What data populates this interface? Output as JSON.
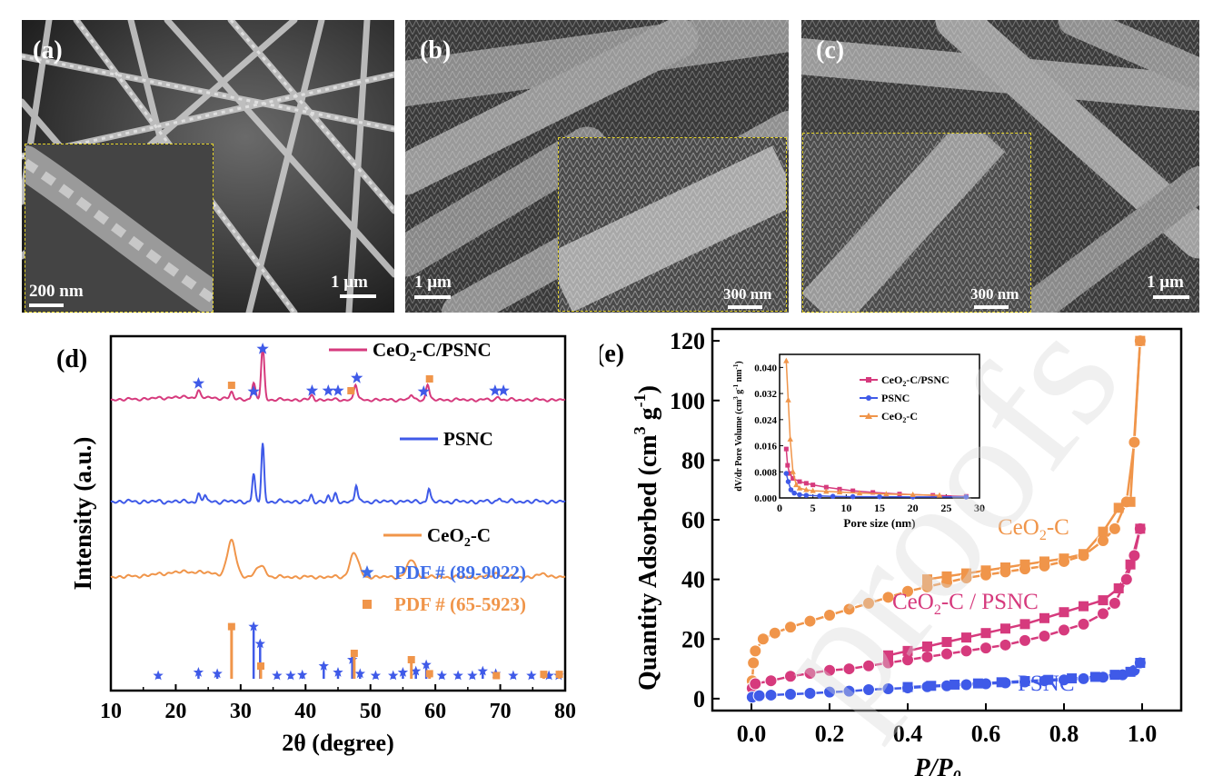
{
  "panels": {
    "a": {
      "label": "(a)",
      "scale_main": "1 μm",
      "scale_inset": "200 nm"
    },
    "b": {
      "label": "(b)",
      "scale_main": "1 μm",
      "scale_inset": "300 nm"
    },
    "c": {
      "label": "(c)",
      "scale_main": "1 μm",
      "scale_inset": "300 nm"
    }
  },
  "watermark": "proofs",
  "chart_data": [
    {
      "panel": "(d)",
      "type": "line",
      "xlabel": "2θ (degree)",
      "ylabel": "Intensity (a.u.)",
      "xlim": [
        10,
        80
      ],
      "xticks": [
        10,
        20,
        30,
        40,
        50,
        60,
        70,
        80
      ],
      "colors": {
        "ceo2_c_psnc": "#d63a7d",
        "psnc": "#3f5ae8",
        "ceo2_c": "#f0954a"
      },
      "series": [
        {
          "name": "CeO2-C/PSNC",
          "label_main": "CeO",
          "label_sub": "2",
          "label_rest": "-C/PSNC",
          "peaks": [
            {
              "x": 23.5,
              "h": 0.12
            },
            {
              "x": 32.0,
              "h": 0.3
            },
            {
              "x": 33.4,
              "h": 1.0
            },
            {
              "x": 41.0,
              "h": 0.08
            },
            {
              "x": 47.7,
              "h": 0.3
            },
            {
              "x": 58.8,
              "h": 0.3
            },
            {
              "x": 28.6,
              "h": 0.12
            },
            {
              "x": 56.3,
              "h": 0.1
            },
            {
              "x": 69.7,
              "h": 0.06
            }
          ]
        },
        {
          "name": "PSNC",
          "label_main": "PSNC",
          "label_sub": "",
          "label_rest": "",
          "peaks": [
            {
              "x": 23.5,
              "h": 0.1
            },
            {
              "x": 24.5,
              "h": 0.1
            },
            {
              "x": 32.0,
              "h": 0.38
            },
            {
              "x": 33.4,
              "h": 0.82
            },
            {
              "x": 40.9,
              "h": 0.08
            },
            {
              "x": 43.5,
              "h": 0.08
            },
            {
              "x": 44.6,
              "h": 0.09
            },
            {
              "x": 47.8,
              "h": 0.24
            },
            {
              "x": 59.0,
              "h": 0.18
            },
            {
              "x": 69.9,
              "h": 0.06
            }
          ]
        },
        {
          "name": "CeO2-C",
          "label_main": "CeO",
          "label_sub": "2",
          "label_rest": "-C",
          "peaks": [
            {
              "x": 28.6,
              "h": 0.6
            },
            {
              "x": 33.1,
              "h": 0.2
            },
            {
              "x": 47.5,
              "h": 0.42
            },
            {
              "x": 56.3,
              "h": 0.3
            },
            {
              "x": 69.4,
              "h": 0.06
            },
            {
              "x": 76.7,
              "h": 0.06
            }
          ]
        }
      ],
      "reference_legend": [
        {
          "marker": "star",
          "text": "PDF # (89-9022)",
          "color": "#3f6ee8"
        },
        {
          "marker": "square",
          "text": "PDF # (65-5923)",
          "color": "#f0954a"
        }
      ],
      "pdf_89_9022": [
        {
          "x": 17.3,
          "h": 0.05
        },
        {
          "x": 23.5,
          "h": 0.1
        },
        {
          "x": 26.4,
          "h": 0.08
        },
        {
          "x": 32.0,
          "h": 0.82
        },
        {
          "x": 33.0,
          "h": 0.55
        },
        {
          "x": 35.6,
          "h": 0.05
        },
        {
          "x": 37.7,
          "h": 0.05
        },
        {
          "x": 39.5,
          "h": 0.06
        },
        {
          "x": 42.8,
          "h": 0.2
        },
        {
          "x": 45.0,
          "h": 0.1
        },
        {
          "x": 47.2,
          "h": 0.3
        },
        {
          "x": 48.4,
          "h": 0.08
        },
        {
          "x": 50.8,
          "h": 0.05
        },
        {
          "x": 53.5,
          "h": 0.05
        },
        {
          "x": 55.0,
          "h": 0.1
        },
        {
          "x": 57.0,
          "h": 0.12
        },
        {
          "x": 58.6,
          "h": 0.22
        },
        {
          "x": 61.0,
          "h": 0.05
        },
        {
          "x": 63.5,
          "h": 0.05
        },
        {
          "x": 65.7,
          "h": 0.05
        },
        {
          "x": 67.3,
          "h": 0.12
        },
        {
          "x": 69.3,
          "h": 0.08
        },
        {
          "x": 72.0,
          "h": 0.05
        },
        {
          "x": 74.8,
          "h": 0.05
        },
        {
          "x": 77.5,
          "h": 0.05
        },
        {
          "x": 79.0,
          "h": 0.05
        }
      ],
      "pdf_65_5923": [
        {
          "x": 28.6,
          "h": 0.82
        },
        {
          "x": 33.1,
          "h": 0.2
        },
        {
          "x": 47.5,
          "h": 0.4
        },
        {
          "x": 56.3,
          "h": 0.3
        },
        {
          "x": 59.1,
          "h": 0.08
        },
        {
          "x": 69.4,
          "h": 0.05
        },
        {
          "x": 76.7,
          "h": 0.07
        },
        {
          "x": 79.1,
          "h": 0.07
        }
      ],
      "peak_markers": {
        "stars": [
          23.5,
          32.0,
          33.4,
          41.0,
          43.5,
          45.0,
          47.9,
          58.2,
          69.2,
          70.5
        ],
        "squares": [
          28.6,
          47.0,
          59.1
        ]
      }
    },
    {
      "panel": "(e)",
      "type": "line",
      "xlabel": "P/P",
      "xlabel_sub": "0",
      "ylabel": "Quantity Adsorbed (cm",
      "ylabel_sup": "3",
      "ylabel_mid": " g",
      "ylabel_sup2": "-1",
      "ylabel_end": ")",
      "xlim": [
        -0.1,
        1.1
      ],
      "ylim": [
        -4,
        124
      ],
      "xticks": [
        0.0,
        0.2,
        0.4,
        0.6,
        0.8,
        1.0
      ],
      "xtick_labels": [
        "0.0",
        "0.2",
        "0.4",
        "0.6",
        "0.8",
        "1.0"
      ],
      "yticks": [
        0,
        20,
        40,
        60,
        80,
        100,
        120
      ],
      "series": [
        {
          "name": "CeO2-C",
          "label_main": "CeO",
          "label_sub": "2",
          "label_rest": "-C",
          "color": "#f0954a",
          "adsorption": [
            [
              0.002,
              6
            ],
            [
              0.005,
              12
            ],
            [
              0.01,
              16
            ],
            [
              0.03,
              20
            ],
            [
              0.06,
              22
            ],
            [
              0.1,
              24
            ],
            [
              0.15,
              26
            ],
            [
              0.2,
              28
            ],
            [
              0.25,
              30
            ],
            [
              0.3,
              32
            ],
            [
              0.35,
              34
            ],
            [
              0.4,
              36
            ],
            [
              0.45,
              37.5
            ],
            [
              0.5,
              39
            ],
            [
              0.55,
              40.5
            ],
            [
              0.6,
              41.5
            ],
            [
              0.65,
              42.5
            ],
            [
              0.7,
              43.5
            ],
            [
              0.75,
              44.5
            ],
            [
              0.8,
              46
            ],
            [
              0.85,
              48
            ],
            [
              0.9,
              53
            ],
            [
              0.93,
              57
            ],
            [
              0.96,
              66
            ],
            [
              0.98,
              86
            ],
            [
              0.995,
              120
            ]
          ],
          "desorption": [
            [
              0.995,
              120
            ],
            [
              0.97,
              66
            ],
            [
              0.94,
              64
            ],
            [
              0.9,
              56
            ],
            [
              0.85,
              48.5
            ],
            [
              0.8,
              47
            ],
            [
              0.75,
              46
            ],
            [
              0.7,
              45
            ],
            [
              0.65,
              44
            ],
            [
              0.6,
              43
            ],
            [
              0.55,
              42
            ],
            [
              0.5,
              41
            ],
            [
              0.45,
              40
            ]
          ]
        },
        {
          "name": "CeO2-C/PSNC",
          "label_main": "CeO",
          "label_sub": "2",
          "label_rest": "-C / PSNC",
          "color": "#d63a7d",
          "adsorption": [
            [
              0.002,
              3.5
            ],
            [
              0.01,
              5
            ],
            [
              0.05,
              6
            ],
            [
              0.1,
              7.5
            ],
            [
              0.15,
              8.5
            ],
            [
              0.2,
              9.5
            ],
            [
              0.25,
              10
            ],
            [
              0.3,
              11
            ],
            [
              0.35,
              12
            ],
            [
              0.4,
              13
            ],
            [
              0.45,
              14
            ],
            [
              0.5,
              15
            ],
            [
              0.55,
              16
            ],
            [
              0.6,
              17
            ],
            [
              0.65,
              18
            ],
            [
              0.7,
              19.5
            ],
            [
              0.75,
              21
            ],
            [
              0.8,
              23
            ],
            [
              0.85,
              25
            ],
            [
              0.9,
              28.5
            ],
            [
              0.93,
              32
            ],
            [
              0.96,
              40
            ],
            [
              0.98,
              48
            ],
            [
              0.995,
              57
            ]
          ],
          "desorption": [
            [
              0.995,
              57
            ],
            [
              0.97,
              45
            ],
            [
              0.94,
              37
            ],
            [
              0.9,
              33
            ],
            [
              0.85,
              31
            ],
            [
              0.8,
              29
            ],
            [
              0.75,
              27
            ],
            [
              0.7,
              25
            ],
            [
              0.65,
              23.5
            ],
            [
              0.6,
              22
            ],
            [
              0.55,
              20.5
            ],
            [
              0.5,
              19
            ],
            [
              0.45,
              17.5
            ],
            [
              0.4,
              16
            ],
            [
              0.35,
              14.5
            ]
          ]
        },
        {
          "name": "PSNC",
          "label_main": "PSNC",
          "label_sub": "",
          "label_rest": "",
          "color": "#3f5ae8",
          "adsorption": [
            [
              0.002,
              0.5
            ],
            [
              0.02,
              1
            ],
            [
              0.05,
              1.2
            ],
            [
              0.1,
              1.5
            ],
            [
              0.15,
              1.8
            ],
            [
              0.2,
              2.2
            ],
            [
              0.25,
              2.5
            ],
            [
              0.3,
              3
            ],
            [
              0.35,
              3.3
            ],
            [
              0.4,
              3.6
            ],
            [
              0.45,
              4
            ],
            [
              0.5,
              4.3
            ],
            [
              0.55,
              4.7
            ],
            [
              0.6,
              5
            ],
            [
              0.65,
              5.3
            ],
            [
              0.7,
              5.6
            ],
            [
              0.75,
              6
            ],
            [
              0.8,
              6.3
            ],
            [
              0.85,
              6.7
            ],
            [
              0.9,
              7.2
            ],
            [
              0.95,
              8
            ],
            [
              0.98,
              9.5
            ],
            [
              0.995,
              12
            ]
          ],
          "desorption": [
            [
              0.995,
              12
            ],
            [
              0.97,
              9
            ],
            [
              0.93,
              8
            ],
            [
              0.88,
              7.3
            ],
            [
              0.82,
              6.8
            ],
            [
              0.76,
              6.3
            ],
            [
              0.7,
              5.9
            ],
            [
              0.64,
              5.5
            ],
            [
              0.58,
              5.1
            ],
            [
              0.52,
              4.7
            ],
            [
              0.46,
              4.3
            ],
            [
              0.4,
              3.9
            ]
          ]
        }
      ],
      "inset": {
        "xlabel": "Pore size (nm)",
        "ylabel": "dV/dr Pore Volume (cm",
        "ylabel_sup": "3",
        "ylabel_mid": " g",
        "ylabel_sup2": "-1",
        "ylabel_mid2": " nm",
        "ylabel_sup3": "-1",
        "ylabel_end": ")",
        "xlim": [
          0,
          30
        ],
        "ylim": [
          0,
          0.044
        ],
        "xticks": [
          0,
          5,
          10,
          15,
          20,
          25,
          30
        ],
        "yticks": [
          0.0,
          0.008,
          0.016,
          0.024,
          0.032,
          0.04
        ],
        "ytick_labels": [
          "0.000",
          "0.008",
          "0.016",
          "0.024",
          "0.032",
          "0.040"
        ],
        "series": [
          {
            "name": "CeO2-C/PSNC",
            "label_main": "CeO",
            "label_sub": "2",
            "label_rest": "-C/PSNC",
            "color": "#d63a7d",
            "marker": "square",
            "points": [
              [
                1.0,
                0.015
              ],
              [
                1.2,
                0.01
              ],
              [
                1.5,
                0.0075
              ],
              [
                2,
                0.006
              ],
              [
                3,
                0.005
              ],
              [
                4,
                0.0045
              ],
              [
                5,
                0.004
              ],
              [
                7,
                0.0033
              ],
              [
                9,
                0.0027
              ],
              [
                11,
                0.0022
              ],
              [
                14,
                0.0017
              ],
              [
                18,
                0.0012
              ],
              [
                23,
                0.0008
              ],
              [
                28,
                0.0005
              ]
            ]
          },
          {
            "name": "PSNC",
            "label_main": "PSNC",
            "label_sub": "",
            "label_rest": "",
            "color": "#3f5ae8",
            "marker": "circle",
            "points": [
              [
                1.0,
                0.0075
              ],
              [
                1.3,
                0.005
              ],
              [
                1.7,
                0.0025
              ],
              [
                2.2,
                0.0015
              ],
              [
                3,
                0.001
              ],
              [
                4,
                0.0008
              ],
              [
                6,
                0.0006
              ],
              [
                8,
                0.0005
              ],
              [
                11,
                0.0004
              ],
              [
                15,
                0.0004
              ],
              [
                20,
                0.0003
              ],
              [
                28,
                0.0003
              ]
            ]
          },
          {
            "name": "CeO2-C",
            "label_main": "CeO",
            "label_sub": "2",
            "label_rest": "-C",
            "color": "#f0954a",
            "marker": "triangle",
            "points": [
              [
                1.0,
                0.042
              ],
              [
                1.3,
                0.03
              ],
              [
                1.6,
                0.018
              ],
              [
                2,
                0.008
              ],
              [
                2.5,
                0.004
              ],
              [
                3,
                0.003
              ],
              [
                4,
                0.0025
              ],
              [
                5,
                0.0022
              ],
              [
                7,
                0.002
              ],
              [
                9,
                0.0018
              ],
              [
                12,
                0.0015
              ],
              [
                16,
                0.0012
              ],
              [
                20,
                0.001
              ],
              [
                24,
                0.0008
              ]
            ]
          }
        ]
      }
    }
  ]
}
